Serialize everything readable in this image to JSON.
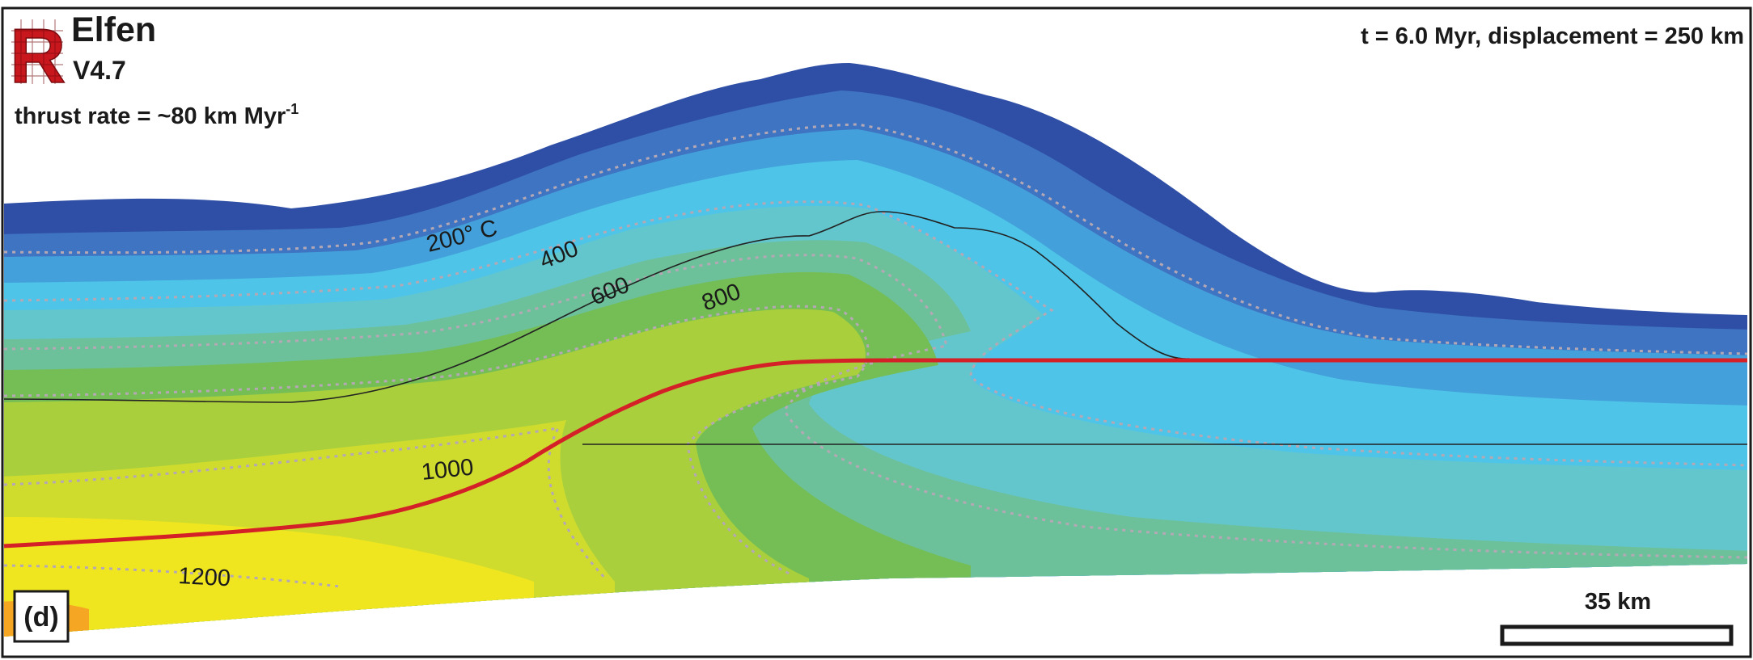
{
  "logo": {
    "name": "Elfen",
    "version": "V4.7",
    "letter": "R"
  },
  "thrust_rate": {
    "prefix": "thrust rate = ~80 km Myr",
    "exponent": "-1"
  },
  "time_label": "t = 6.0 Myr, displacement = 250 km",
  "panel_label": "(d)",
  "scale_bar": {
    "label": "35 km"
  },
  "isotherms": [
    {
      "label": "200° C"
    },
    {
      "label": "400"
    },
    {
      "label": "600"
    },
    {
      "label": "800"
    },
    {
      "label": "1000"
    },
    {
      "label": "1200"
    }
  ],
  "colors": {
    "band_1": "#2f4fa6",
    "band_2": "#3e74c2",
    "band_3": "#43a0da",
    "band_4": "#4ec4e8",
    "band_5": "#64c6cd",
    "band_6": "#6cc19a",
    "band_7": "#74be55",
    "band_8": "#a9cf3c",
    "band_9": "#cfdc2e",
    "band_10": "#f0e61f",
    "band_11": "#f5a623",
    "fault": "#d42027",
    "logo": "#c8171d"
  }
}
